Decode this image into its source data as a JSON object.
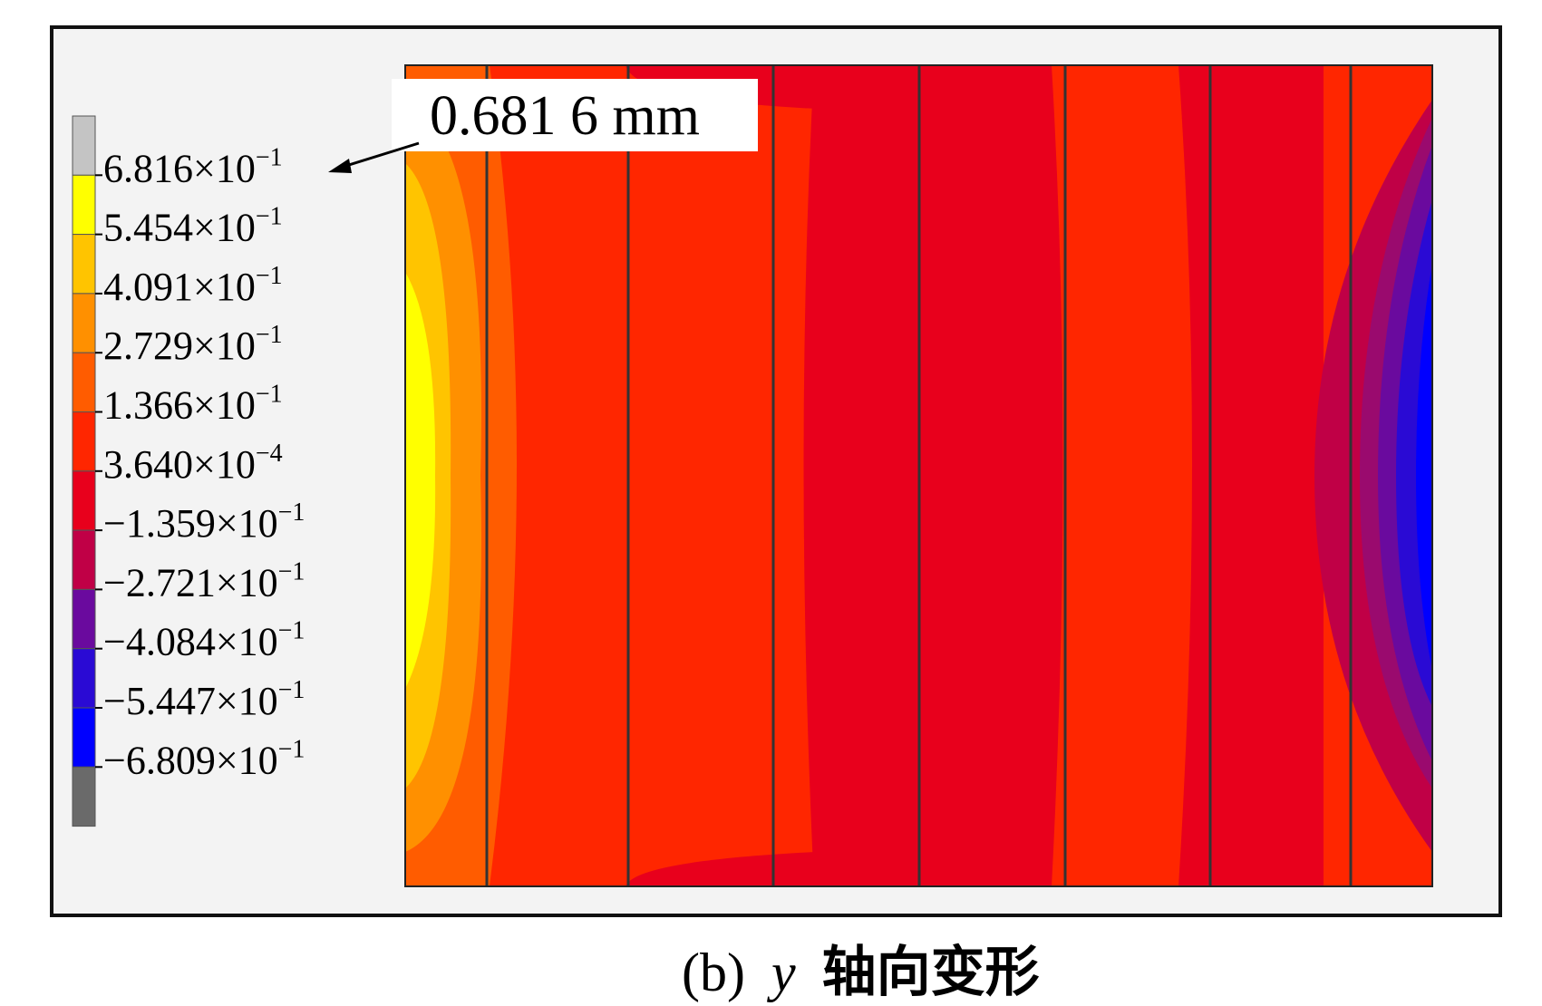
{
  "legend": {
    "colors": [
      "#c4c4c4",
      "#ffff00",
      "#ffc400",
      "#ff9000",
      "#ff5c00",
      "#ff2600",
      "#e8001c",
      "#c00046",
      "#6a0a9e",
      "#2a0ad4",
      "#0000ff",
      "#6a6a6a"
    ],
    "entries": [
      {
        "mantissa": "6.816",
        "exp": "−1"
      },
      {
        "mantissa": "5.454",
        "exp": "−1"
      },
      {
        "mantissa": "4.091",
        "exp": "−1"
      },
      {
        "mantissa": "2.729",
        "exp": "−1"
      },
      {
        "mantissa": "1.366",
        "exp": "−1"
      },
      {
        "mantissa": "3.640",
        "exp": "−4"
      },
      {
        "mantissa": "−1.359",
        "exp": "−1"
      },
      {
        "mantissa": "−2.721",
        "exp": "−1"
      },
      {
        "mantissa": "−4.084",
        "exp": "−1"
      },
      {
        "mantissa": "−5.447",
        "exp": "−1"
      },
      {
        "mantissa": "−6.809",
        "exp": "−1"
      }
    ],
    "times_symbol": "×10"
  },
  "annotation": {
    "text": "0.681 6 mm"
  },
  "caption": {
    "label": "(b)",
    "variable": "y",
    "text": "轴向变形"
  },
  "colors": {
    "frame": "#111111",
    "panel_bg": "#f3f3f3",
    "field_main": "#ff2600",
    "field_dark": "#e8001c",
    "yellow": "#ffff00",
    "blue": "#0000ff"
  }
}
